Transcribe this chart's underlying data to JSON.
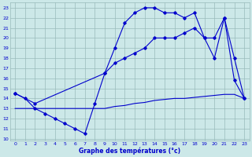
{
  "title": "Graphe des températures (°c)",
  "xlim": [
    -0.5,
    23.5
  ],
  "ylim": [
    9.8,
    23.5
  ],
  "yticks": [
    10,
    11,
    12,
    13,
    14,
    15,
    16,
    17,
    18,
    19,
    20,
    21,
    22,
    23
  ],
  "xticks": [
    0,
    1,
    2,
    3,
    4,
    5,
    6,
    7,
    8,
    9,
    10,
    11,
    12,
    13,
    14,
    15,
    16,
    17,
    18,
    19,
    20,
    21,
    22,
    23
  ],
  "bg_color": "#cce8e8",
  "line_color": "#0000cc",
  "grid_color": "#99bbbb",
  "line1_x": [
    0,
    1,
    2,
    3,
    4,
    5,
    6,
    7,
    8,
    9,
    10,
    11,
    12,
    13,
    14,
    15,
    16,
    17,
    18,
    19,
    20,
    21,
    22,
    23
  ],
  "line1_y": [
    14.5,
    14.0,
    13.0,
    12.5,
    12.0,
    11.5,
    11.0,
    10.5,
    13.5,
    16.5,
    19.0,
    21.5,
    22.5,
    23.0,
    23.0,
    22.5,
    22.5,
    22.0,
    22.5,
    20.0,
    18.0,
    22.0,
    15.8,
    14.0
  ],
  "line2_x": [
    0,
    2,
    9,
    10,
    11,
    12,
    13,
    14,
    15,
    16,
    17,
    18,
    19,
    20,
    21,
    22,
    23
  ],
  "line2_y": [
    14.5,
    13.5,
    16.5,
    17.5,
    18.0,
    18.5,
    19.0,
    20.0,
    20.0,
    20.0,
    20.5,
    21.0,
    20.0,
    20.0,
    22.0,
    18.0,
    14.0
  ],
  "line3_x": [
    0,
    1,
    2,
    3,
    4,
    5,
    6,
    7,
    8,
    9,
    10,
    11,
    12,
    13,
    14,
    15,
    16,
    17,
    18,
    19,
    20,
    21,
    22,
    23
  ],
  "line3_y": [
    13.0,
    13.0,
    13.0,
    13.0,
    13.0,
    13.0,
    13.0,
    13.0,
    13.0,
    13.0,
    13.2,
    13.3,
    13.5,
    13.6,
    13.8,
    13.9,
    14.0,
    14.0,
    14.1,
    14.2,
    14.3,
    14.4,
    14.4,
    14.0
  ]
}
